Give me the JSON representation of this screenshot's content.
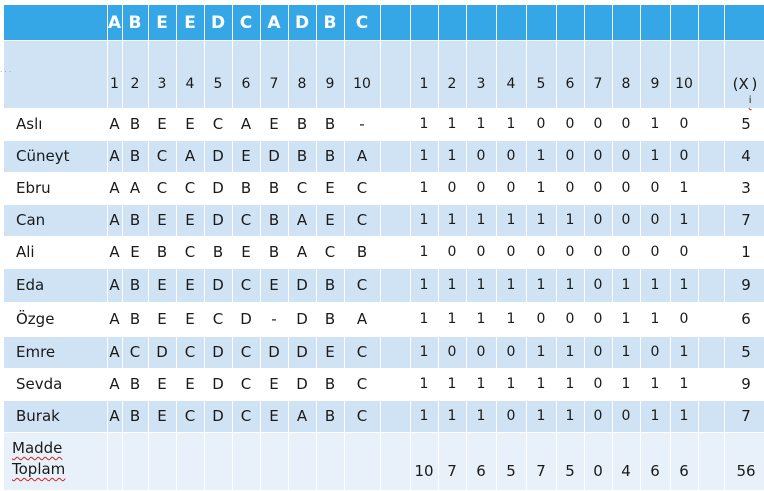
{
  "table": {
    "answer_key": [
      "A",
      "B",
      "E",
      "E",
      "D",
      "C",
      "A",
      "D",
      "B",
      "C"
    ],
    "question_numbers": [
      "1",
      "2",
      "3",
      "4",
      "5",
      "6",
      "7",
      "8",
      "9",
      "10"
    ],
    "score_numbers": [
      "1",
      "2",
      "3",
      "4",
      "5",
      "6",
      "7",
      "8",
      "9",
      "10"
    ],
    "total_header": "(X",
    "total_header_sub": "i",
    "total_header_end": ")",
    "students": [
      {
        "name": "Aslı",
        "answers": [
          "A",
          "B",
          "E",
          "E",
          "C",
          "A",
          "E",
          "B",
          "B",
          "-"
        ],
        "scores": [
          "1",
          "1",
          "1",
          "1",
          "0",
          "0",
          "0",
          "0",
          "1",
          "0"
        ],
        "total": "5"
      },
      {
        "name": "Cüneyt",
        "answers": [
          "A",
          "B",
          "C",
          "A",
          "D",
          "E",
          "D",
          "B",
          "B",
          "A"
        ],
        "scores": [
          "1",
          "1",
          "0",
          "0",
          "1",
          "0",
          "0",
          "0",
          "1",
          "0"
        ],
        "total": "4"
      },
      {
        "name": "Ebru",
        "answers": [
          "A",
          "A",
          "C",
          "C",
          "D",
          "B",
          "B",
          "C",
          "E",
          "C"
        ],
        "scores": [
          "1",
          "0",
          "0",
          "0",
          "1",
          "0",
          "0",
          "0",
          "0",
          "1"
        ],
        "total": "3"
      },
      {
        "name": "Can",
        "answers": [
          "A",
          "B",
          "E",
          "E",
          "D",
          "C",
          "B",
          "A",
          "E",
          "C"
        ],
        "scores": [
          "1",
          "1",
          "1",
          "1",
          "1",
          "1",
          "0",
          "0",
          "0",
          "1"
        ],
        "total": "7"
      },
      {
        "name": "Ali",
        "answers": [
          "A",
          "E",
          "B",
          "C",
          "B",
          "E",
          "B",
          "A",
          "C",
          "B"
        ],
        "scores": [
          "1",
          "0",
          "0",
          "0",
          "0",
          "0",
          "0",
          "0",
          "0",
          "0"
        ],
        "total": "1"
      },
      {
        "name": "Eda",
        "answers": [
          "A",
          "B",
          "E",
          "E",
          "D",
          "C",
          "E",
          "D",
          "B",
          "C"
        ],
        "scores": [
          "1",
          "1",
          "1",
          "1",
          "1",
          "1",
          "0",
          "1",
          "1",
          "1"
        ],
        "total": "9"
      },
      {
        "name": "Özge",
        "answers": [
          "A",
          "B",
          "E",
          "E",
          "C",
          "D",
          "-",
          "D",
          "B",
          "A"
        ],
        "scores": [
          "1",
          "1",
          "1",
          "1",
          "0",
          "0",
          "0",
          "1",
          "1",
          "0"
        ],
        "total": "6"
      },
      {
        "name": "Emre",
        "answers": [
          "A",
          "C",
          "D",
          "C",
          "D",
          "C",
          "D",
          "D",
          "E",
          "C"
        ],
        "scores": [
          "1",
          "0",
          "0",
          "0",
          "1",
          "1",
          "0",
          "1",
          "0",
          "1"
        ],
        "total": "5"
      },
      {
        "name": "Sevda",
        "answers": [
          "A",
          "B",
          "E",
          "E",
          "D",
          "C",
          "E",
          "D",
          "B",
          "C"
        ],
        "scores": [
          "1",
          "1",
          "1",
          "1",
          "1",
          "1",
          "0",
          "1",
          "1",
          "1"
        ],
        "total": "9"
      },
      {
        "name": "Burak",
        "answers": [
          "A",
          "B",
          "E",
          "C",
          "D",
          "C",
          "E",
          "A",
          "B",
          "C"
        ],
        "scores": [
          "1",
          "1",
          "1",
          "0",
          "1",
          "1",
          "0",
          "0",
          "1",
          "1"
        ],
        "total": "7"
      }
    ],
    "footer_label_line1": "Madde",
    "footer_label_line2": "Toplam",
    "item_totals": [
      "10",
      "7",
      "6",
      "5",
      "7",
      "5",
      "0",
      "4",
      "6",
      "6"
    ],
    "grand_total": "56",
    "colors": {
      "header": "#36a7e6",
      "row_light": "#cfe3f4",
      "row_white": "#ffffff",
      "stripe": "#e8f1fa"
    }
  }
}
